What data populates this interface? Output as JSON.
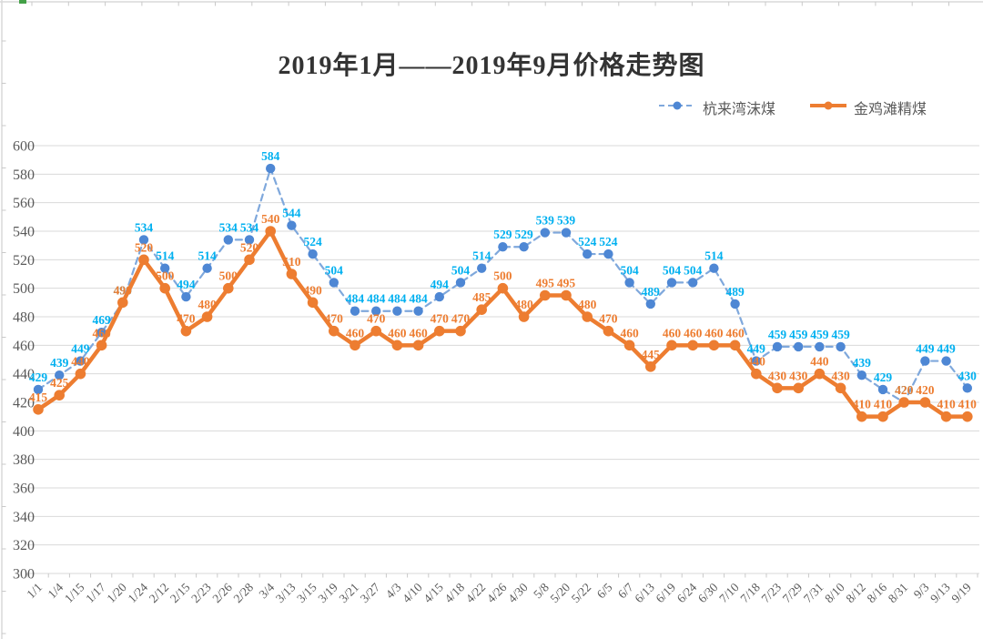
{
  "chart_data": {
    "type": "line",
    "title": "2019年1月——2019年9月价格走势图",
    "legend_position": "top-right",
    "grid": "horizontal",
    "ylim": [
      300,
      600
    ],
    "y_ticks": [
      300,
      320,
      340,
      360,
      380,
      400,
      420,
      440,
      460,
      480,
      500,
      520,
      540,
      560,
      580,
      600
    ],
    "axis_color": "#595959",
    "gridline_color": "#D9D9D9",
    "tick_color": "#C9C9C9",
    "ruler_green_mark_color": "#43A047",
    "categories": [
      "1/1",
      "1/4",
      "1/15",
      "1/17",
      "1/20",
      "1/24",
      "2/12",
      "2/15",
      "2/23",
      "2/26",
      "2/28",
      "3/4",
      "3/13",
      "3/15",
      "3/19",
      "3/21",
      "3/27",
      "4/3",
      "4/10",
      "4/15",
      "4/18",
      "4/22",
      "4/26",
      "4/30",
      "5/8",
      "5/20",
      "5/22",
      "6/5",
      "6/7",
      "6/13",
      "6/19",
      "6/24",
      "6/30",
      "7/10",
      "7/18",
      "7/23",
      "7/29",
      "7/31",
      "8/10",
      "8/12",
      "8/16",
      "8/31",
      "9/3",
      "9/13",
      "9/19"
    ],
    "series": [
      {
        "name": "杭来湾沫煤",
        "style": "dashed",
        "line_color": "#7FA8DC",
        "marker_color": "#4E87D4",
        "label_color": "#00B0F0",
        "values": [
          429,
          439,
          449,
          469,
          490,
          534,
          514,
          494,
          514,
          534,
          534,
          584,
          544,
          524,
          504,
          484,
          484,
          484,
          484,
          494,
          504,
          514,
          529,
          529,
          539,
          539,
          524,
          524,
          504,
          489,
          504,
          504,
          514,
          489,
          449,
          459,
          459,
          459,
          459,
          439,
          429,
          420,
          449,
          449,
          430
        ]
      },
      {
        "name": "金鸡滩精煤",
        "style": "solid",
        "line_color": "#ED7D31",
        "marker_color": "#ED7D31",
        "label_color": "#ED7D31",
        "values": [
          415,
          425,
          440,
          460,
          490,
          520,
          500,
          470,
          480,
          500,
          520,
          540,
          510,
          490,
          470,
          460,
          470,
          460,
          460,
          470,
          470,
          485,
          500,
          480,
          495,
          495,
          480,
          470,
          460,
          445,
          460,
          460,
          460,
          460,
          440,
          430,
          430,
          440,
          430,
          410,
          410,
          420,
          420,
          410,
          410
        ]
      }
    ]
  }
}
